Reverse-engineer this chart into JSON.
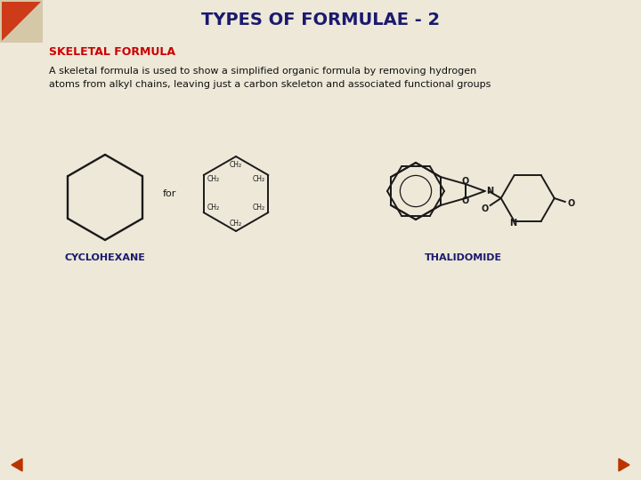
{
  "title": "TYPES OF FORMULAE - 2",
  "title_color": "#1a1a6e",
  "title_fontsize": 14,
  "background_color": "#ede8d8",
  "section_header": "SKELETAL FORMULA",
  "section_header_color": "#cc0000",
  "section_header_fontsize": 9,
  "description": "A skeletal formula is used to show a simplified organic formula by removing hydrogen\natoms from alkyl chains, leaving just a carbon skeleton and associated functional groups",
  "description_fontsize": 8,
  "description_color": "#111111",
  "cyclohexane_label": "CYCLOHEXANE",
  "thalidomide_label": "THALIDOMIDE",
  "label_color": "#1a1a6e",
  "label_fontsize": 8,
  "for_text": "for",
  "line_color": "#1a1a1a",
  "lw": 1.4,
  "nav_arrow_color": "#bb3300"
}
